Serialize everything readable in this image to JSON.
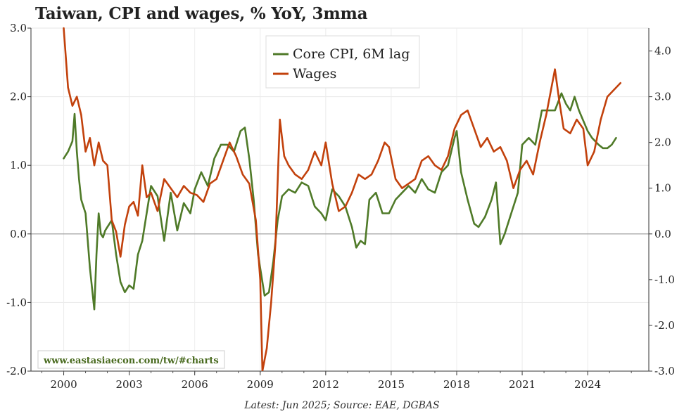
{
  "chart_data": {
    "type": "line",
    "title": "Taiwan, CPI and wages, % YoY, 3mma",
    "left_axis": {
      "ylim": [
        -2.0,
        3.0
      ],
      "ticks": [
        "3.0",
        "2.0",
        "1.0",
        "0.0",
        "-1.0",
        "-2.0"
      ],
      "tick_values": [
        3,
        2,
        1,
        0,
        -1,
        -2
      ]
    },
    "right_axis": {
      "ylim": [
        -3.0,
        4.5
      ],
      "ticks": [
        "4.0",
        "3.0",
        "2.0",
        "1.0",
        "0.0",
        "-1.0",
        "-2.0",
        "-3.0"
      ],
      "tick_values": [
        4,
        3,
        2,
        1,
        0,
        -1,
        -2,
        -3
      ]
    },
    "x_axis": {
      "xlim": [
        1998.5,
        2026.8
      ],
      "ticks": [
        "2000",
        "2003",
        "2006",
        "2009",
        "2012",
        "2015",
        "2018",
        "2021",
        "2024"
      ],
      "tick_values": [
        2000,
        2003,
        2006,
        2009,
        2012,
        2015,
        2018,
        2021,
        2024
      ]
    },
    "legend_position": "top-center",
    "source": "Latest: Jun 2025; Source: EAE, DGBAS",
    "watermark": "www.eastasiaecon.com/tw/#charts",
    "series": [
      {
        "name": "Core CPI, 6M lag",
        "axis": "left",
        "color": "#4f7a28",
        "x": [
          2000.0,
          2000.2,
          2000.4,
          2000.5,
          2000.6,
          2000.7,
          2000.8,
          2000.9,
          2001.0,
          2001.2,
          2001.4,
          2001.5,
          2001.6,
          2001.7,
          2001.8,
          2001.9,
          2002.0,
          2002.2,
          2002.4,
          2002.6,
          2002.8,
          2003.0,
          2003.2,
          2003.4,
          2003.6,
          2003.8,
          2004.0,
          2004.3,
          2004.6,
          2004.9,
          2005.2,
          2005.5,
          2005.8,
          2006.0,
          2006.3,
          2006.6,
          2006.9,
          2007.2,
          2007.5,
          2007.8,
          2008.1,
          2008.3,
          2008.5,
          2008.7,
          2008.9,
          2009.0,
          2009.2,
          2009.4,
          2009.6,
          2009.8,
          2010.0,
          2010.3,
          2010.6,
          2010.9,
          2011.2,
          2011.5,
          2011.8,
          2012.0,
          2012.3,
          2012.6,
          2012.9,
          2013.2,
          2013.4,
          2013.6,
          2013.8,
          2014.0,
          2014.3,
          2014.6,
          2014.9,
          2015.2,
          2015.5,
          2015.8,
          2016.1,
          2016.4,
          2016.7,
          2017.0,
          2017.3,
          2017.6,
          2017.9,
          2018.0,
          2018.2,
          2018.5,
          2018.8,
          2019.0,
          2019.3,
          2019.6,
          2019.8,
          2020.0,
          2020.2,
          2020.5,
          2020.8,
          2021.0,
          2021.3,
          2021.6,
          2021.9,
          2022.2,
          2022.5,
          2022.8,
          2023.0,
          2023.2,
          2023.4,
          2023.6,
          2023.8,
          2024.0,
          2024.2,
          2024.5,
          2024.7,
          2024.9,
          2025.1,
          2025.3
        ],
        "values": [
          1.1,
          1.2,
          1.35,
          1.75,
          1.2,
          0.8,
          0.5,
          0.4,
          0.3,
          -0.5,
          -1.1,
          -0.3,
          0.3,
          0.0,
          -0.05,
          0.05,
          0.1,
          0.2,
          -0.3,
          -0.7,
          -0.85,
          -0.75,
          -0.8,
          -0.3,
          -0.1,
          0.3,
          0.7,
          0.55,
          -0.1,
          0.6,
          0.05,
          0.45,
          0.3,
          0.65,
          0.9,
          0.7,
          1.1,
          1.3,
          1.3,
          1.2,
          1.5,
          1.55,
          1.1,
          0.5,
          -0.3,
          -0.5,
          -0.9,
          -0.85,
          -0.4,
          0.2,
          0.55,
          0.65,
          0.6,
          0.75,
          0.7,
          0.4,
          0.3,
          0.2,
          0.65,
          0.55,
          0.4,
          0.1,
          -0.2,
          -0.1,
          -0.15,
          0.5,
          0.6,
          0.3,
          0.3,
          0.5,
          0.6,
          0.7,
          0.6,
          0.8,
          0.65,
          0.6,
          0.9,
          1.0,
          1.4,
          1.5,
          0.9,
          0.5,
          0.15,
          0.1,
          0.25,
          0.5,
          0.75,
          -0.15,
          0.0,
          0.3,
          0.6,
          1.3,
          1.4,
          1.3,
          1.8,
          1.8,
          1.8,
          2.05,
          1.9,
          1.8,
          2.0,
          1.8,
          1.65,
          1.5,
          1.4,
          1.3,
          1.25,
          1.25,
          1.3,
          1.4
        ]
      },
      {
        "name": "Wages",
        "axis": "right",
        "color": "#c2410c",
        "x": [
          2000.0,
          2000.2,
          2000.4,
          2000.6,
          2000.8,
          2001.0,
          2001.2,
          2001.4,
          2001.6,
          2001.8,
          2002.0,
          2002.2,
          2002.4,
          2002.6,
          2002.8,
          2003.0,
          2003.2,
          2003.4,
          2003.6,
          2003.8,
          2004.0,
          2004.3,
          2004.6,
          2004.9,
          2005.2,
          2005.5,
          2005.8,
          2006.1,
          2006.4,
          2006.7,
          2007.0,
          2007.3,
          2007.6,
          2007.9,
          2008.2,
          2008.5,
          2008.8,
          2009.0,
          2009.1,
          2009.3,
          2009.5,
          2009.7,
          2009.9,
          2010.1,
          2010.3,
          2010.6,
          2010.9,
          2011.2,
          2011.5,
          2011.8,
          2012.0,
          2012.3,
          2012.6,
          2012.9,
          2013.2,
          2013.5,
          2013.8,
          2014.1,
          2014.4,
          2014.7,
          2014.9,
          2015.2,
          2015.5,
          2015.8,
          2016.1,
          2016.4,
          2016.7,
          2017.0,
          2017.3,
          2017.6,
          2017.9,
          2018.2,
          2018.5,
          2018.8,
          2019.1,
          2019.4,
          2019.7,
          2020.0,
          2020.3,
          2020.6,
          2020.9,
          2021.2,
          2021.5,
          2021.8,
          2022.1,
          2022.3,
          2022.5,
          2022.7,
          2022.9,
          2023.2,
          2023.5,
          2023.8,
          2024.0,
          2024.3,
          2024.6,
          2024.9,
          2025.1,
          2025.3,
          2025.5
        ],
        "values": [
          4.5,
          3.2,
          2.8,
          3.0,
          2.6,
          1.8,
          2.1,
          1.5,
          2.0,
          1.6,
          1.5,
          0.3,
          0.05,
          -0.5,
          0.2,
          0.6,
          0.7,
          0.4,
          1.5,
          0.8,
          0.9,
          0.5,
          1.2,
          1.0,
          0.8,
          1.05,
          0.9,
          0.85,
          0.7,
          1.1,
          1.2,
          1.6,
          2.0,
          1.7,
          1.3,
          1.1,
          0.3,
          -1.0,
          -3.0,
          -2.5,
          -1.5,
          -0.2,
          2.5,
          1.7,
          1.5,
          1.3,
          1.2,
          1.4,
          1.8,
          1.5,
          2.0,
          1.1,
          0.5,
          0.6,
          0.9,
          1.3,
          1.2,
          1.3,
          1.6,
          2.0,
          1.9,
          1.2,
          1.0,
          1.1,
          1.2,
          1.6,
          1.7,
          1.5,
          1.4,
          1.7,
          2.3,
          2.6,
          2.7,
          2.3,
          1.9,
          2.1,
          1.8,
          1.9,
          1.6,
          1.0,
          1.4,
          1.6,
          1.3,
          2.0,
          2.6,
          3.1,
          3.6,
          2.9,
          2.3,
          2.2,
          2.5,
          2.3,
          1.5,
          1.8,
          2.5,
          3.0,
          3.1,
          3.2,
          3.3
        ]
      }
    ]
  }
}
